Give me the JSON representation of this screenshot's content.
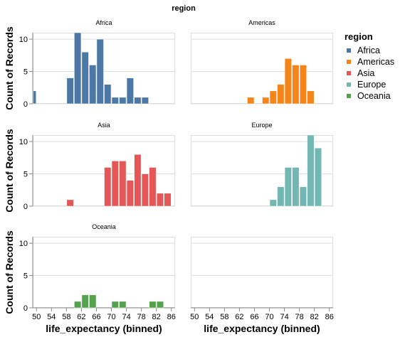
{
  "header": {
    "title": "region"
  },
  "legend": {
    "title": "region",
    "items": [
      {
        "label": "Africa",
        "color": "#4c78a8"
      },
      {
        "label": "Americas",
        "color": "#f58518"
      },
      {
        "label": "Asia",
        "color": "#e45756"
      },
      {
        "label": "Europe",
        "color": "#72b7b2"
      },
      {
        "label": "Oceania",
        "color": "#54a24b"
      }
    ]
  },
  "chart_data": {
    "type": "bar",
    "title": "region",
    "xlabel": "life_expectancy (binned)",
    "ylabel": "Count of Records",
    "xlim": [
      49,
      87
    ],
    "ylim": [
      0,
      11
    ],
    "x_ticks": [
      50,
      54,
      58,
      62,
      66,
      70,
      74,
      78,
      82,
      86
    ],
    "y_ticks": [
      0,
      5,
      10
    ],
    "bin_width": 2,
    "grid": true,
    "legend_position": "right",
    "panels": [
      {
        "name": "Africa",
        "color": "#4c78a8",
        "bins": [
          [
            48,
            2
          ],
          [
            58,
            4
          ],
          [
            60,
            11
          ],
          [
            62,
            8
          ],
          [
            64,
            6
          ],
          [
            66,
            10
          ],
          [
            68,
            3
          ],
          [
            70,
            1
          ],
          [
            72,
            1
          ],
          [
            74,
            4
          ],
          [
            76,
            1
          ],
          [
            78,
            1
          ]
        ]
      },
      {
        "name": "Americas",
        "color": "#f58518",
        "bins": [
          [
            64,
            1
          ],
          [
            68,
            1
          ],
          [
            70,
            2
          ],
          [
            72,
            3
          ],
          [
            74,
            7
          ],
          [
            76,
            6
          ],
          [
            78,
            6
          ],
          [
            80,
            2
          ]
        ]
      },
      {
        "name": "Asia",
        "color": "#e45756",
        "bins": [
          [
            58,
            1
          ],
          [
            68,
            6
          ],
          [
            70,
            7
          ],
          [
            72,
            7
          ],
          [
            74,
            4
          ],
          [
            76,
            8
          ],
          [
            78,
            5
          ],
          [
            80,
            6
          ],
          [
            82,
            2
          ],
          [
            84,
            2
          ]
        ]
      },
      {
        "name": "Europe",
        "color": "#72b7b2",
        "bins": [
          [
            70,
            1
          ],
          [
            72,
            3
          ],
          [
            74,
            6
          ],
          [
            76,
            6
          ],
          [
            78,
            3
          ],
          [
            80,
            11
          ],
          [
            82,
            9
          ]
        ]
      },
      {
        "name": "Oceania",
        "color": "#54a24b",
        "bins": [
          [
            60,
            1
          ],
          [
            62,
            2
          ],
          [
            64,
            2
          ],
          [
            70,
            1
          ],
          [
            72,
            1
          ],
          [
            80,
            1
          ],
          [
            82,
            1
          ]
        ]
      }
    ]
  }
}
